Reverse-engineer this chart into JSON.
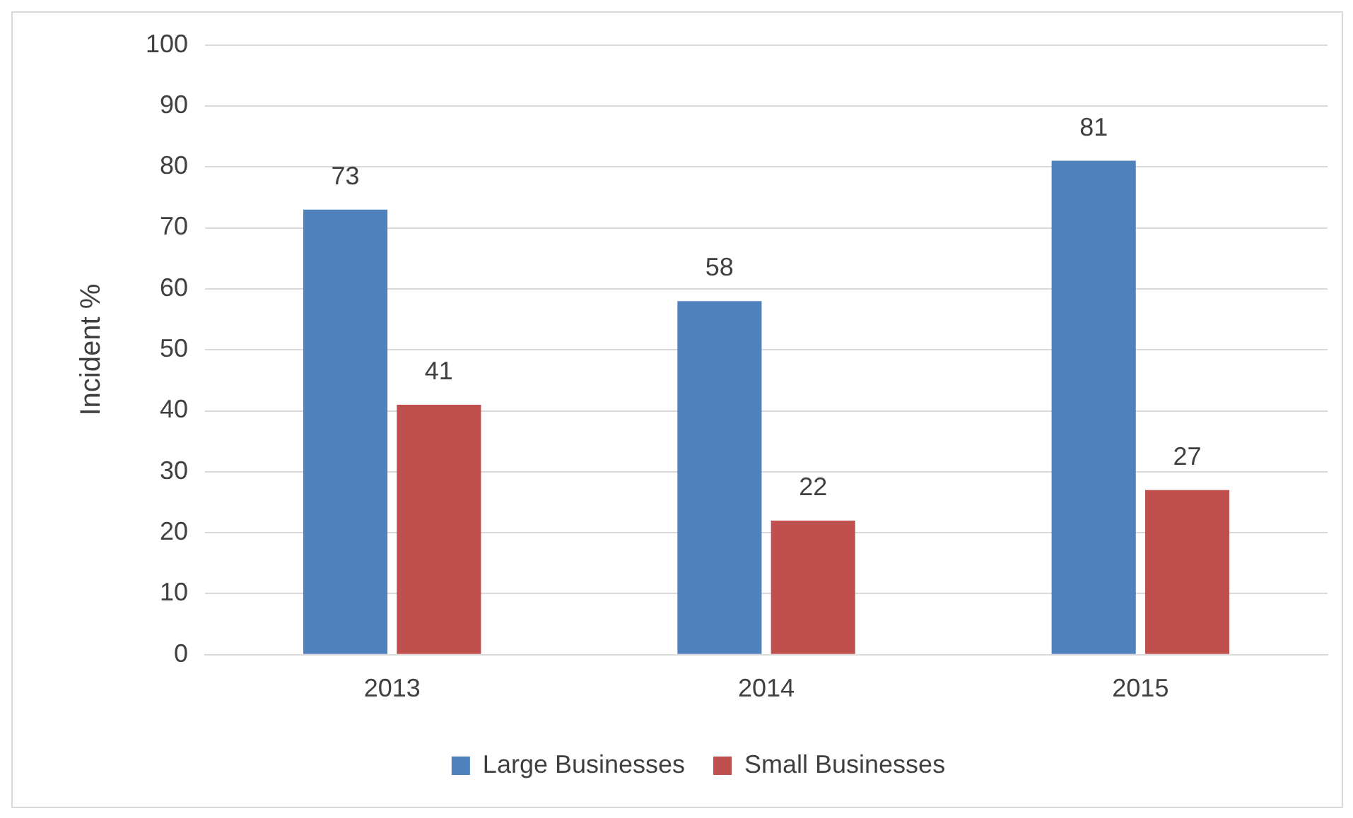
{
  "chart_data": {
    "type": "bar",
    "ylabel": "Incident %",
    "categories": [
      "2013",
      "2014",
      "2015"
    ],
    "series": [
      {
        "name": "Large Businesses",
        "color": "#4f81bd",
        "values": [
          73,
          58,
          81
        ]
      },
      {
        "name": "Small Businesses",
        "color": "#c0504d",
        "values": [
          41,
          22,
          27
        ]
      }
    ],
    "ylim": [
      0,
      100
    ],
    "yticks": [
      0,
      10,
      20,
      30,
      40,
      50,
      60,
      70,
      80,
      90,
      100
    ],
    "grid": "y",
    "legend": "bottom",
    "data_labels": true
  }
}
